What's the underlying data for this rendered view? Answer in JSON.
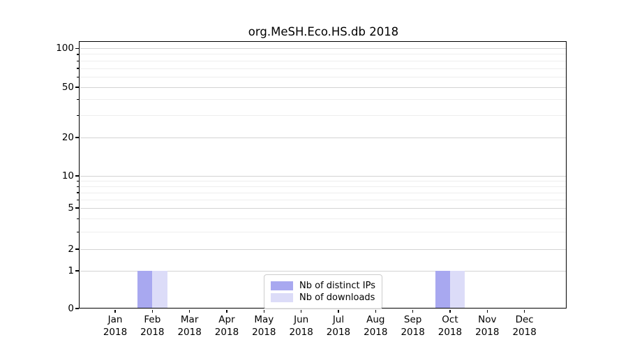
{
  "chart_data": {
    "type": "bar",
    "title": "org.MeSH.Eco.HS.db 2018",
    "categories": [
      "Jan",
      "Feb",
      "Mar",
      "Apr",
      "May",
      "Jun",
      "Jul",
      "Aug",
      "Sep",
      "Oct",
      "Nov",
      "Dec"
    ],
    "x_year_label": "2018",
    "series": [
      {
        "name": "Nb of distinct IPs",
        "color": "#a8a8f0",
        "values": [
          0,
          1,
          0,
          0,
          0,
          0,
          0,
          0,
          0,
          1,
          0,
          0
        ]
      },
      {
        "name": "Nb of downloads",
        "color": "#dcdcf8",
        "values": [
          0,
          1,
          0,
          0,
          0,
          0,
          0,
          0,
          0,
          1,
          0,
          0
        ]
      }
    ],
    "yscale": "log1p",
    "ylim": [
      0,
      110
    ],
    "y_major_ticks": [
      0,
      1,
      2,
      5,
      10,
      20,
      50,
      100
    ],
    "y_minor_ticks": [
      3,
      4,
      6,
      7,
      8,
      9,
      30,
      40,
      60,
      70,
      80,
      90
    ],
    "grid": "horizontal",
    "legend_position": "lower center"
  },
  "colors": {
    "grid_major": "#d3d3d3",
    "grid_minor": "#eeeeee",
    "axis": "#000000",
    "legend_border": "#cccccc",
    "background": "#ffffff"
  }
}
